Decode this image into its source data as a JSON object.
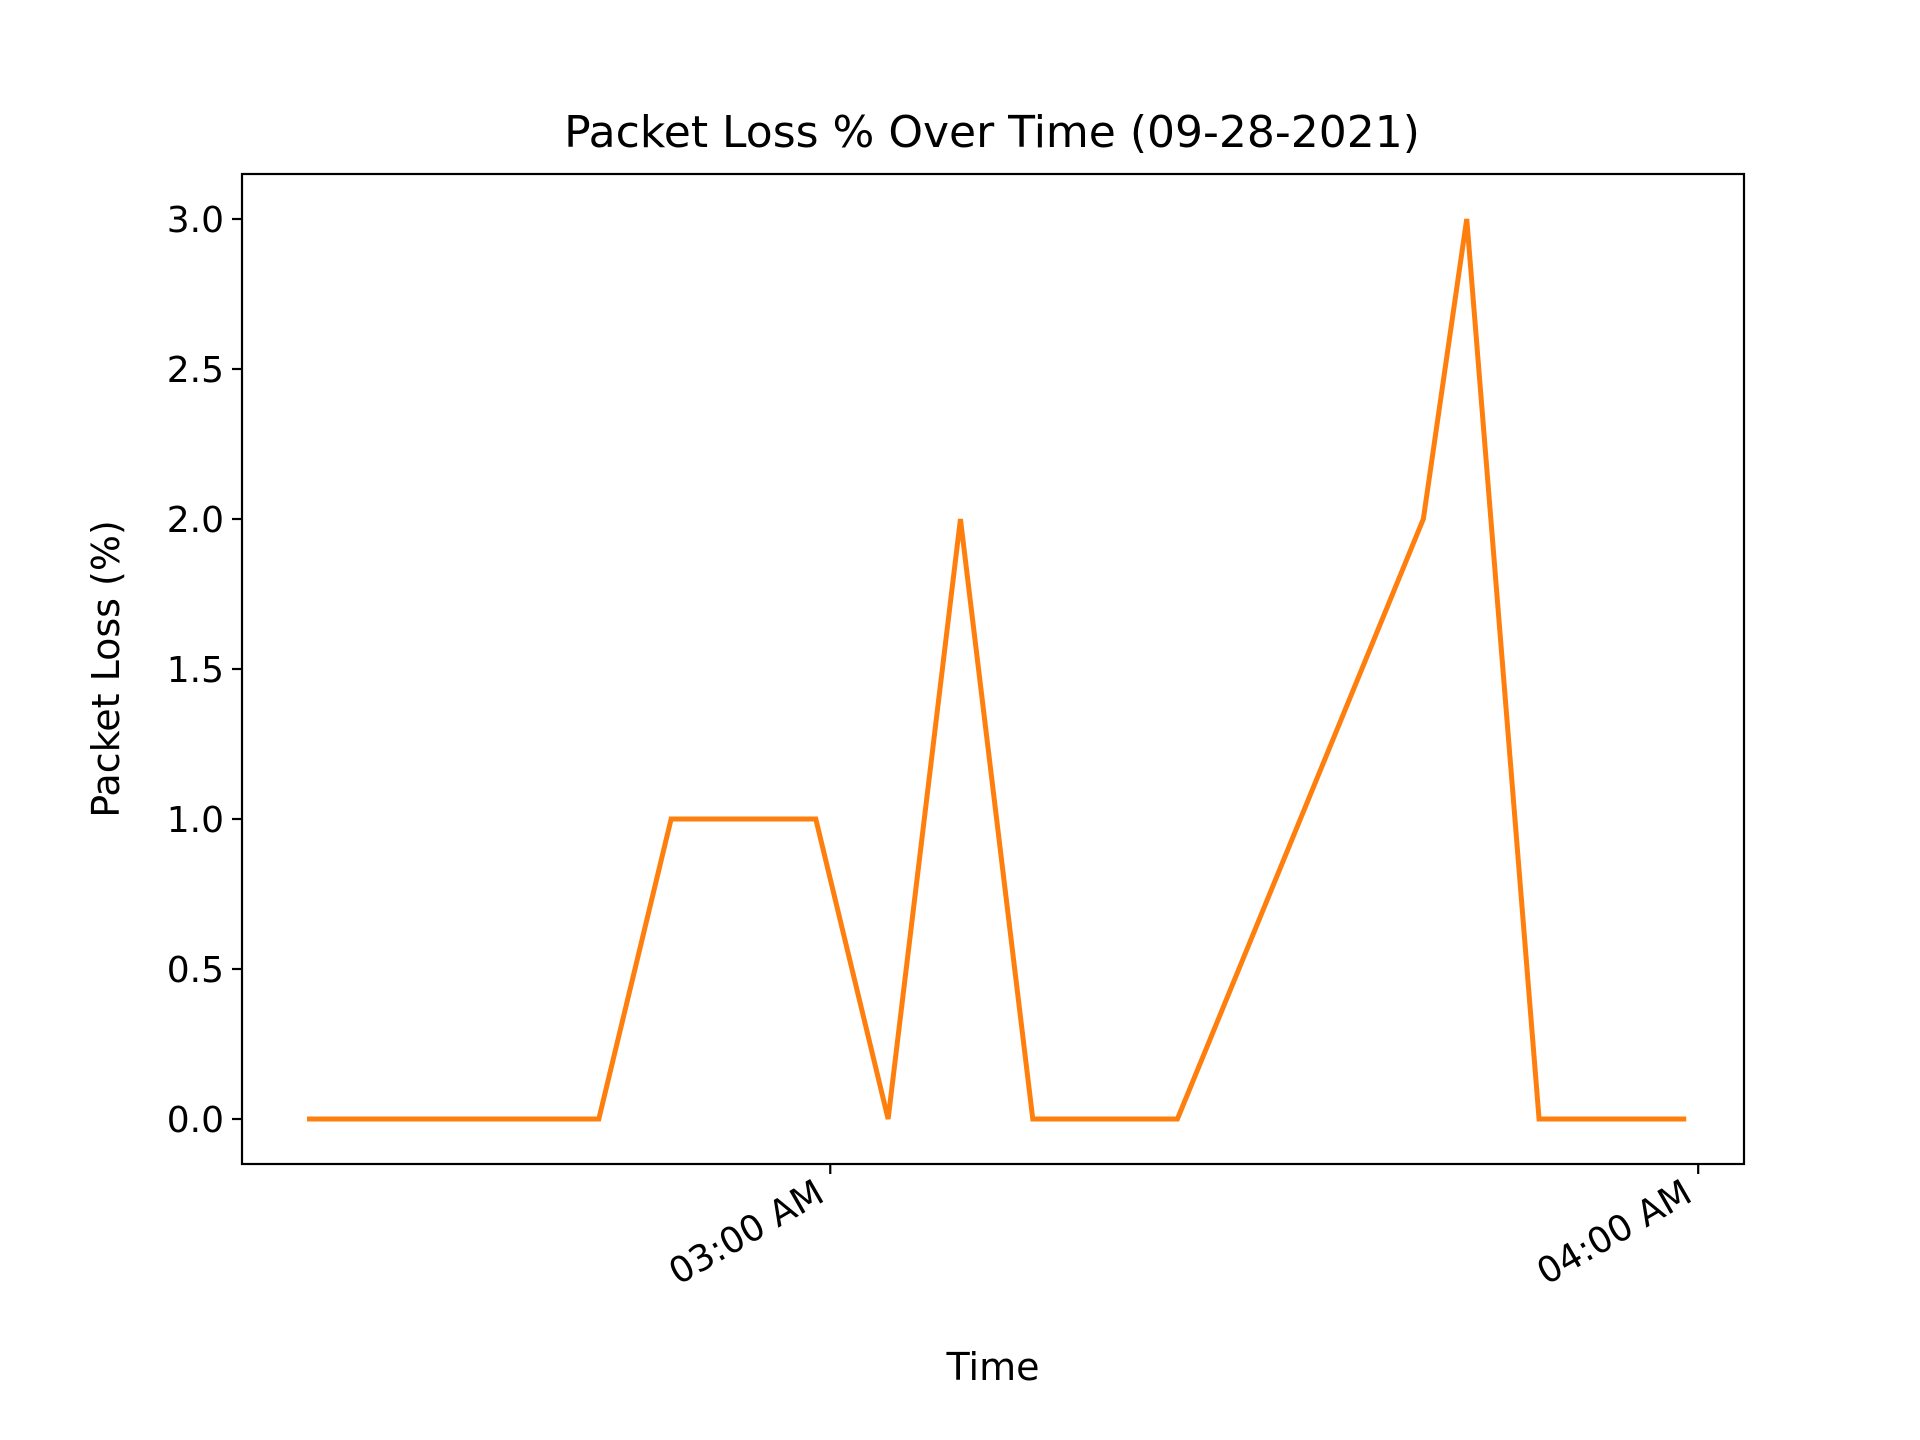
{
  "chart_data": {
    "type": "line",
    "title": "Packet Loss % Over Time (09-28-2021)",
    "xlabel": "Time",
    "ylabel": "Packet Loss (%)",
    "x_axis_type": "time",
    "x_range": [
      "02:19:20",
      "04:03:10"
    ],
    "ylim": [
      -0.15,
      3.15
    ],
    "x_ticks": [
      {
        "time": "03:00",
        "label": "03:00 AM"
      },
      {
        "time": "04:00",
        "label": "04:00 AM"
      }
    ],
    "y_ticks": [
      {
        "value": 0.0,
        "label": "0.0"
      },
      {
        "value": 0.5,
        "label": "0.5"
      },
      {
        "value": 1.0,
        "label": "1.0"
      },
      {
        "value": 1.5,
        "label": "1.5"
      },
      {
        "value": 2.0,
        "label": "2.0"
      },
      {
        "value": 2.5,
        "label": "2.5"
      },
      {
        "value": 3.0,
        "label": "3.0"
      }
    ],
    "grid": false,
    "legend": "none",
    "series": [
      {
        "color": "#ff7f0e",
        "points": [
          {
            "time": "02:24",
            "value": 0
          },
          {
            "time": "02:44",
            "value": 0
          },
          {
            "time": "02:49",
            "value": 1
          },
          {
            "time": "02:59",
            "value": 1
          },
          {
            "time": "03:04",
            "value": 0
          },
          {
            "time": "03:09",
            "value": 2
          },
          {
            "time": "03:14",
            "value": 0
          },
          {
            "time": "03:24",
            "value": 0
          },
          {
            "time": "03:41",
            "value": 2
          },
          {
            "time": "03:44",
            "value": 3
          },
          {
            "time": "03:49",
            "value": 0
          },
          {
            "time": "03:59",
            "value": 0
          }
        ]
      }
    ]
  }
}
